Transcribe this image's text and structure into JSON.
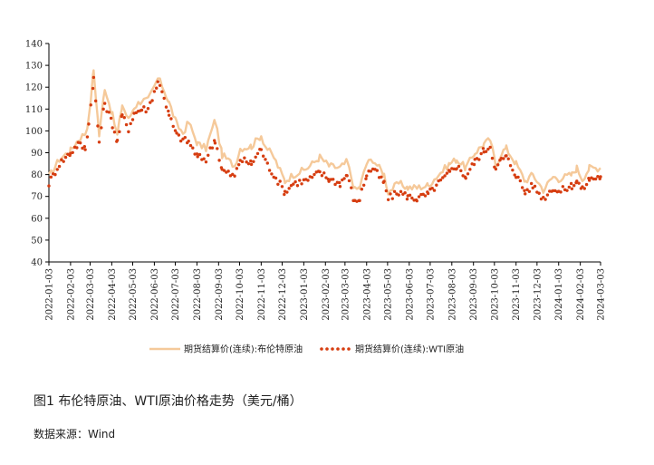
{
  "caption": "图1 布伦特原油、WTI原油价格走势（美元/桶）",
  "source": "数据来源：Wind",
  "chart_data": {
    "type": "line",
    "title": "",
    "xlabel": "",
    "ylabel": "",
    "ylim": [
      40,
      140
    ],
    "yticks": [
      40,
      50,
      60,
      70,
      80,
      90,
      100,
      110,
      120,
      130,
      140
    ],
    "x_tick_labels": [
      "2022-01-03",
      "2022-02-03",
      "2022-03-03",
      "2022-04-03",
      "2022-05-03",
      "2022-06-03",
      "2022-07-03",
      "2022-08-03",
      "2022-09-03",
      "2022-10-03",
      "2022-11-03",
      "2022-12-03",
      "2023-01-03",
      "2023-02-03",
      "2023-03-03",
      "2023-04-03",
      "2023-05-03",
      "2023-06-03",
      "2023-07-03",
      "2023-08-03",
      "2023-09-03",
      "2023-10-03",
      "2023-11-03",
      "2023-12-03",
      "2024-01-03",
      "2024-02-03",
      "2024-03-03"
    ],
    "grid": false,
    "legend_position": "bottom",
    "series": [
      {
        "name": "期货结算价(连续):布伦特原油",
        "style": "line",
        "color": "#f5c99a",
        "points": [
          [
            "2022-01-03",
            79
          ],
          [
            "2022-01-18",
            87
          ],
          [
            "2022-02-03",
            91
          ],
          [
            "2022-02-14",
            96
          ],
          [
            "2022-02-24",
            99
          ],
          [
            "2022-03-01",
            105
          ],
          [
            "2022-03-08",
            128
          ],
          [
            "2022-03-16",
            98
          ],
          [
            "2022-03-24",
            120
          ],
          [
            "2022-04-04",
            107
          ],
          [
            "2022-04-11",
            98
          ],
          [
            "2022-04-18",
            112
          ],
          [
            "2022-04-27",
            105
          ],
          [
            "2022-05-05",
            111
          ],
          [
            "2022-05-16",
            114
          ],
          [
            "2022-05-25",
            114
          ],
          [
            "2022-06-03",
            120
          ],
          [
            "2022-06-08",
            124
          ],
          [
            "2022-06-14",
            121
          ],
          [
            "2022-06-24",
            113
          ],
          [
            "2022-07-05",
            103
          ],
          [
            "2022-07-14",
            99
          ],
          [
            "2022-07-22",
            104
          ],
          [
            "2022-08-04",
            94
          ],
          [
            "2022-08-16",
            92
          ],
          [
            "2022-08-29",
            105
          ],
          [
            "2022-09-08",
            89
          ],
          [
            "2022-09-26",
            84
          ],
          [
            "2022-10-04",
            92
          ],
          [
            "2022-10-20",
            93
          ],
          [
            "2022-11-03",
            98
          ],
          [
            "2022-11-09",
            93
          ],
          [
            "2022-11-21",
            88
          ],
          [
            "2022-12-07",
            77
          ],
          [
            "2022-12-19",
            80
          ],
          [
            "2023-01-03",
            82
          ],
          [
            "2023-01-12",
            84
          ],
          [
            "2023-01-26",
            88
          ],
          [
            "2023-02-08",
            84
          ],
          [
            "2023-02-24",
            83
          ],
          [
            "2023-03-06",
            86
          ],
          [
            "2023-03-17",
            73
          ],
          [
            "2023-03-24",
            74
          ],
          [
            "2023-04-03",
            85
          ],
          [
            "2023-04-12",
            87
          ],
          [
            "2023-04-28",
            80
          ],
          [
            "2023-05-04",
            72
          ],
          [
            "2023-05-19",
            76
          ],
          [
            "2023-06-01",
            74
          ],
          [
            "2023-06-14",
            74
          ],
          [
            "2023-06-30",
            75
          ],
          [
            "2023-07-12",
            79
          ],
          [
            "2023-07-31",
            85
          ],
          [
            "2023-08-10",
            87
          ],
          [
            "2023-08-23",
            83
          ],
          [
            "2023-09-05",
            90
          ],
          [
            "2023-09-18",
            94
          ],
          [
            "2023-09-27",
            96
          ],
          [
            "2023-10-05",
            84
          ],
          [
            "2023-10-13",
            90
          ],
          [
            "2023-10-20",
            92
          ],
          [
            "2023-11-03",
            85
          ],
          [
            "2023-11-16",
            77
          ],
          [
            "2023-11-27",
            80
          ],
          [
            "2023-12-12",
            73
          ],
          [
            "2023-12-26",
            79
          ],
          [
            "2024-01-03",
            78
          ],
          [
            "2024-01-22",
            80
          ],
          [
            "2024-01-29",
            83
          ],
          [
            "2024-02-06",
            78
          ],
          [
            "2024-02-16",
            83
          ],
          [
            "2024-03-03",
            83
          ]
        ]
      },
      {
        "name": "期货结算价(连续):WTI原油",
        "style": "dotted",
        "color": "#d63d10",
        "points": [
          [
            "2022-01-03",
            76
          ],
          [
            "2022-01-18",
            85
          ],
          [
            "2022-02-03",
            90
          ],
          [
            "2022-02-14",
            94
          ],
          [
            "2022-02-24",
            92
          ],
          [
            "2022-03-01",
            103
          ],
          [
            "2022-03-08",
            124
          ],
          [
            "2022-03-16",
            95
          ],
          [
            "2022-03-24",
            113
          ],
          [
            "2022-04-04",
            103
          ],
          [
            "2022-04-11",
            95
          ],
          [
            "2022-04-18",
            107
          ],
          [
            "2022-04-27",
            101
          ],
          [
            "2022-05-05",
            108
          ],
          [
            "2022-05-16",
            110
          ],
          [
            "2022-05-25",
            110
          ],
          [
            "2022-06-03",
            118
          ],
          [
            "2022-06-08",
            122
          ],
          [
            "2022-06-14",
            119
          ],
          [
            "2022-06-24",
            107
          ],
          [
            "2022-07-05",
            98
          ],
          [
            "2022-07-14",
            96
          ],
          [
            "2022-07-22",
            95
          ],
          [
            "2022-08-04",
            88
          ],
          [
            "2022-08-16",
            87
          ],
          [
            "2022-08-29",
            96
          ],
          [
            "2022-09-08",
            82
          ],
          [
            "2022-09-26",
            79
          ],
          [
            "2022-10-04",
            87
          ],
          [
            "2022-10-20",
            85
          ],
          [
            "2022-11-03",
            92
          ],
          [
            "2022-11-09",
            86
          ],
          [
            "2022-11-21",
            80
          ],
          [
            "2022-12-07",
            72
          ],
          [
            "2022-12-19",
            76
          ],
          [
            "2023-01-03",
            77
          ],
          [
            "2023-01-12",
            78
          ],
          [
            "2023-01-26",
            81
          ],
          [
            "2023-02-08",
            78
          ],
          [
            "2023-02-24",
            76
          ],
          [
            "2023-03-06",
            80
          ],
          [
            "2023-03-17",
            67
          ],
          [
            "2023-03-24",
            69
          ],
          [
            "2023-04-03",
            80
          ],
          [
            "2023-04-12",
            83
          ],
          [
            "2023-04-28",
            76
          ],
          [
            "2023-05-04",
            69
          ],
          [
            "2023-05-19",
            72
          ],
          [
            "2023-06-01",
            70
          ],
          [
            "2023-06-14",
            69
          ],
          [
            "2023-06-30",
            71
          ],
          [
            "2023-07-12",
            75
          ],
          [
            "2023-07-31",
            81
          ],
          [
            "2023-08-10",
            84
          ],
          [
            "2023-08-23",
            79
          ],
          [
            "2023-09-05",
            86
          ],
          [
            "2023-09-18",
            91
          ],
          [
            "2023-09-27",
            93
          ],
          [
            "2023-10-05",
            82
          ],
          [
            "2023-10-13",
            87
          ],
          [
            "2023-10-20",
            88
          ],
          [
            "2023-11-03",
            80
          ],
          [
            "2023-11-16",
            72
          ],
          [
            "2023-11-27",
            75
          ],
          [
            "2023-12-12",
            69
          ],
          [
            "2023-12-26",
            74
          ],
          [
            "2024-01-03",
            72
          ],
          [
            "2024-01-22",
            75
          ],
          [
            "2024-01-29",
            77
          ],
          [
            "2024-02-06",
            73
          ],
          [
            "2024-02-16",
            78
          ],
          [
            "2024-03-03",
            79
          ]
        ]
      }
    ]
  }
}
